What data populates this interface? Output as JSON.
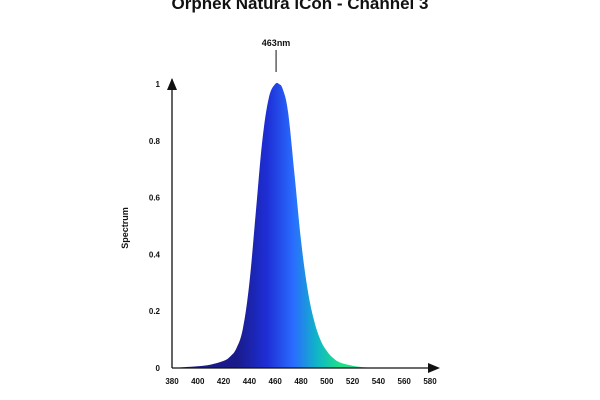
{
  "chart_data": {
    "type": "area",
    "title": "Orphek Natura iCon - Channel 3",
    "xlabel": "",
    "ylabel": "Spectrum",
    "xlim": [
      380,
      580
    ],
    "ylim": [
      0,
      1
    ],
    "x_ticks": [
      "380",
      "400",
      "420",
      "440",
      "460",
      "480",
      "500",
      "520",
      "540",
      "560",
      "580"
    ],
    "y_ticks": [
      "0",
      "0.2",
      "0.4",
      "0.6",
      "0.8",
      "1"
    ],
    "grid": false,
    "legend": "none",
    "peak_annotation": {
      "label": "463nm",
      "x": 463,
      "y": 1.0
    },
    "series": [
      {
        "x": [
          380,
          390,
          400,
          410,
          420,
          425,
          430,
          435,
          440,
          445,
          450,
          455,
          460,
          463,
          466,
          470,
          475,
          480,
          485,
          490,
          495,
          500,
          505,
          510,
          520,
          530,
          540
        ],
        "values": [
          0.0,
          0.003,
          0.006,
          0.012,
          0.025,
          0.04,
          0.07,
          0.14,
          0.3,
          0.55,
          0.8,
          0.95,
          1.0,
          1.0,
          0.98,
          0.9,
          0.68,
          0.45,
          0.28,
          0.17,
          0.1,
          0.06,
          0.035,
          0.02,
          0.008,
          0.002,
          0.0
        ]
      }
    ],
    "colors": {
      "violet": "#1a1a8a",
      "blue_deep": "#1e2fd6",
      "blue": "#2a6cff",
      "teal": "#10b5c8",
      "green": "#1ee08a",
      "axis": "#111111"
    }
  }
}
